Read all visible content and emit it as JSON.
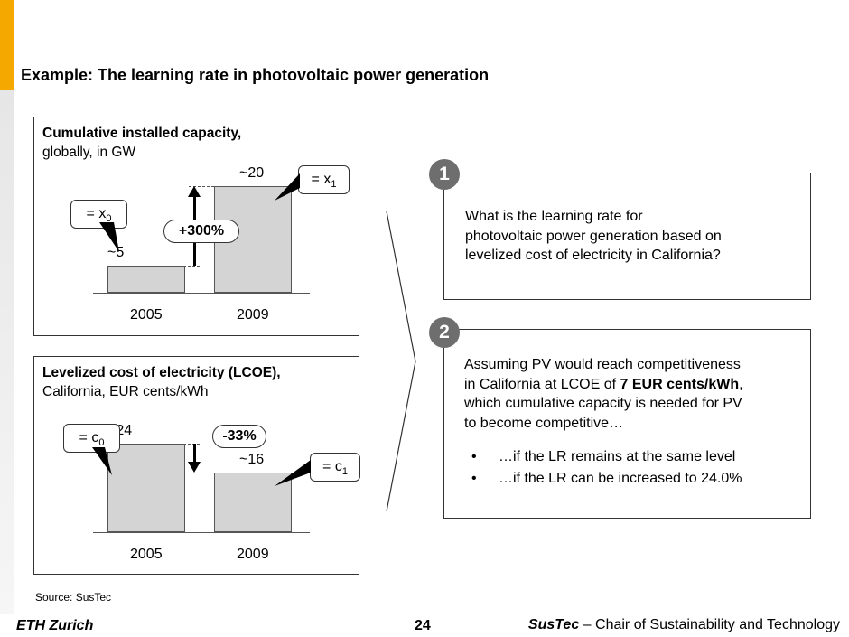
{
  "slide": {
    "title": "Example: The learning rate in photovoltaic power generation",
    "accent_color": "#f5a800",
    "source": "Source: SusTec",
    "page_number": "24"
  },
  "footer": {
    "left": "ETH Zurich",
    "right_bold": "SusTec",
    "right_rest": " – Chair of Sustainability and Technology"
  },
  "chart_capacity": {
    "heading_bold": "Cumulative installed capacity,",
    "heading_rest": "globally, in GW",
    "change_label": "+300%",
    "callout_x0": "= x",
    "callout_x0_sub": "0",
    "callout_x1": "= x",
    "callout_x1_sub": "1",
    "value_labels": [
      "~5",
      "~20"
    ]
  },
  "chart_lcoe": {
    "heading_bold": "Levelized cost of electricity (LCOE),",
    "heading_rest": "California, EUR cents/kWh",
    "change_label": "-33%",
    "callout_c0": "= c",
    "callout_c0_sub": "0",
    "callout_c1": "= c",
    "callout_c1_sub": "1",
    "value_labels": [
      "~24",
      "~16"
    ]
  },
  "chart_data": [
    {
      "type": "bar",
      "title": "Cumulative installed capacity, globally, in GW",
      "categories": [
        "2005",
        "2009"
      ],
      "values": [
        5,
        20
      ],
      "ylim": [
        0,
        24
      ]
    },
    {
      "type": "bar",
      "title": "Levelized cost of electricity (LCOE), California, EUR cents/kWh",
      "categories": [
        "2005",
        "2009"
      ],
      "values": [
        24,
        16
      ],
      "ylim": [
        0,
        28
      ]
    }
  ],
  "question1": {
    "number": "1",
    "lines": [
      "What is the learning rate for",
      "photovoltaic power generation based on",
      "levelized cost of electricity in California?"
    ]
  },
  "question2": {
    "number": "2",
    "line1": "Assuming PV would reach competitiveness",
    "line2_pre": "in California at LCOE of ",
    "line2_bold": "7 EUR cents/kWh",
    "line2_post": ",",
    "line3": "which cumulative capacity is needed for PV",
    "line4": "to become competitive…",
    "bullets": [
      "…if the LR remains at the same level",
      "…if the LR can be increased to 24.0%"
    ]
  }
}
